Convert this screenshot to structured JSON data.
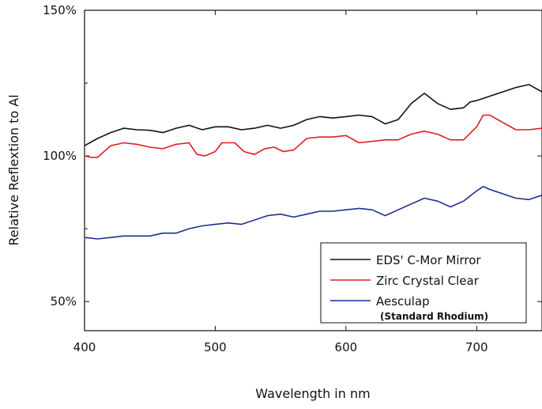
{
  "chart_data": {
    "type": "line",
    "title": "",
    "xlabel": "Wavelength in nm",
    "ylabel": "Relative Reflextion to Al",
    "xlim": [
      400,
      750
    ],
    "ylim": [
      40,
      150
    ],
    "x_ticks": [
      {
        "value": 400,
        "label": "400"
      },
      {
        "value": 500,
        "label": "500"
      },
      {
        "value": 600,
        "label": "600"
      },
      {
        "value": 700,
        "label": "700"
      }
    ],
    "y_ticks": [
      {
        "value": 50,
        "label": "50%"
      },
      {
        "value": 100,
        "label": "100%"
      },
      {
        "value": 150,
        "label": "150%"
      }
    ],
    "y_minor_ticks": [
      75,
      125
    ],
    "grid": false,
    "legend_position": "bottom-right",
    "series": [
      {
        "name": "EDS' C-Mor Mirror",
        "color": "#111111",
        "points": [
          [
            400,
            103.5
          ],
          [
            410,
            106
          ],
          [
            420,
            108
          ],
          [
            430,
            109.5
          ],
          [
            440,
            109
          ],
          [
            450,
            108.8
          ],
          [
            460,
            108
          ],
          [
            470,
            109.5
          ],
          [
            480,
            110.5
          ],
          [
            490,
            109
          ],
          [
            500,
            110
          ],
          [
            510,
            110
          ],
          [
            520,
            109
          ],
          [
            530,
            109.5
          ],
          [
            540,
            110.5
          ],
          [
            550,
            109.5
          ],
          [
            560,
            110.5
          ],
          [
            570,
            112.5
          ],
          [
            580,
            113.5
          ],
          [
            590,
            113
          ],
          [
            600,
            113.5
          ],
          [
            610,
            114
          ],
          [
            620,
            113.5
          ],
          [
            630,
            111
          ],
          [
            640,
            112.5
          ],
          [
            650,
            118
          ],
          [
            660,
            121.5
          ],
          [
            670,
            118
          ],
          [
            680,
            116
          ],
          [
            690,
            116.5
          ],
          [
            695,
            118.5
          ],
          [
            700,
            119
          ],
          [
            710,
            120.5
          ],
          [
            720,
            122
          ],
          [
            730,
            123.5
          ],
          [
            740,
            124.5
          ],
          [
            750,
            122
          ]
        ]
      },
      {
        "name": "Zirc Crystal Clear",
        "color": "#e01e1e",
        "points": [
          [
            400,
            100
          ],
          [
            405,
            99.5
          ],
          [
            410,
            99.5
          ],
          [
            420,
            103.5
          ],
          [
            430,
            104.5
          ],
          [
            440,
            104
          ],
          [
            450,
            103
          ],
          [
            460,
            102.5
          ],
          [
            470,
            104
          ],
          [
            480,
            104.5
          ],
          [
            486,
            100.5
          ],
          [
            492,
            100
          ],
          [
            500,
            101.5
          ],
          [
            505,
            104.5
          ],
          [
            515,
            104.5
          ],
          [
            522,
            101.5
          ],
          [
            530,
            100.5
          ],
          [
            538,
            102.5
          ],
          [
            545,
            103
          ],
          [
            552,
            101.5
          ],
          [
            560,
            102
          ],
          [
            570,
            106
          ],
          [
            580,
            106.5
          ],
          [
            590,
            106.5
          ],
          [
            600,
            107
          ],
          [
            610,
            104.5
          ],
          [
            620,
            105
          ],
          [
            630,
            105.5
          ],
          [
            640,
            105.5
          ],
          [
            650,
            107.5
          ],
          [
            660,
            108.5
          ],
          [
            670,
            107.5
          ],
          [
            680,
            105.5
          ],
          [
            690,
            105.5
          ],
          [
            700,
            110
          ],
          [
            705,
            114
          ],
          [
            710,
            114
          ],
          [
            720,
            111.5
          ],
          [
            730,
            109
          ],
          [
            740,
            109
          ],
          [
            750,
            109.5
          ]
        ]
      },
      {
        "name": "Aesculap",
        "color": "#1f2f8f",
        "points": [
          [
            400,
            72
          ],
          [
            410,
            71.5
          ],
          [
            420,
            72
          ],
          [
            430,
            72.5
          ],
          [
            440,
            72.5
          ],
          [
            450,
            72.5
          ],
          [
            460,
            73.5
          ],
          [
            470,
            73.5
          ],
          [
            480,
            75
          ],
          [
            490,
            76
          ],
          [
            500,
            76.5
          ],
          [
            510,
            77
          ],
          [
            520,
            76.5
          ],
          [
            530,
            78
          ],
          [
            540,
            79.5
          ],
          [
            550,
            80
          ],
          [
            560,
            79
          ],
          [
            570,
            80
          ],
          [
            580,
            81
          ],
          [
            590,
            81
          ],
          [
            600,
            81.5
          ],
          [
            610,
            82
          ],
          [
            620,
            81.5
          ],
          [
            630,
            79.5
          ],
          [
            640,
            81.5
          ],
          [
            650,
            83.5
          ],
          [
            660,
            85.5
          ],
          [
            670,
            84.5
          ],
          [
            680,
            82.5
          ],
          [
            690,
            84.5
          ],
          [
            700,
            88
          ],
          [
            705,
            89.5
          ],
          [
            710,
            88.5
          ],
          [
            720,
            87
          ],
          [
            730,
            85.5
          ],
          [
            740,
            85
          ],
          [
            750,
            86.5
          ]
        ]
      }
    ],
    "legend_subtitle": "(Standard Rhodium)"
  }
}
